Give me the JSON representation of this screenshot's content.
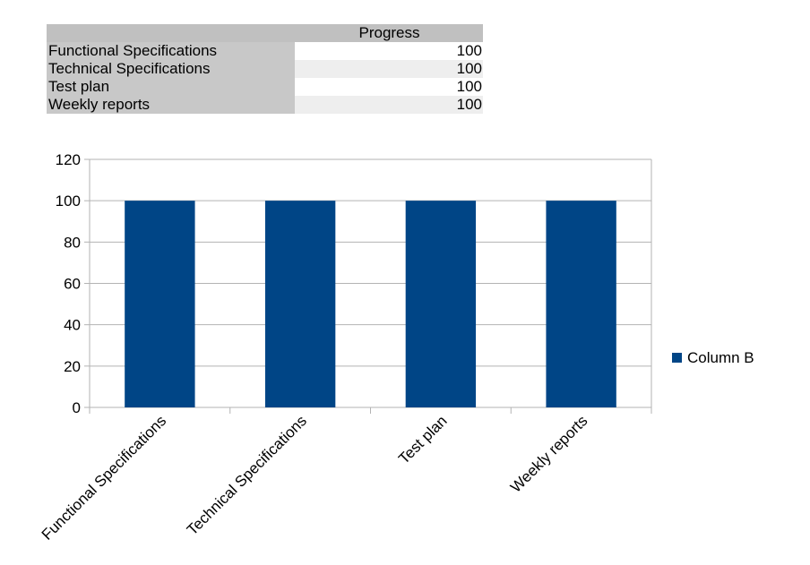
{
  "table": {
    "header": "Progress",
    "rows": [
      {
        "label": "Functional Specifications",
        "value": "100"
      },
      {
        "label": "Technical Specifications",
        "value": "100"
      },
      {
        "label": "Test plan",
        "value": "100"
      },
      {
        "label": "Weekly reports",
        "value": "100"
      }
    ]
  },
  "chart_data": {
    "type": "bar",
    "categories": [
      "Functional Specifications",
      "Technical Specifications",
      "Test plan",
      "Weekly reports"
    ],
    "series": [
      {
        "name": "Column B",
        "values": [
          100,
          100,
          100,
          100
        ],
        "color": "#004586"
      }
    ],
    "ylim": [
      0,
      120
    ],
    "yticks": [
      0,
      20,
      40,
      60,
      80,
      100,
      120
    ],
    "grid": true,
    "legend": "right"
  }
}
